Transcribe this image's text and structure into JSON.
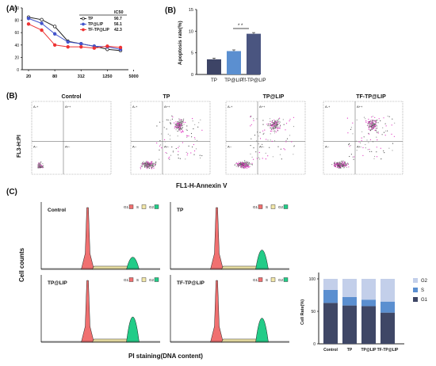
{
  "panels": {
    "a": "(A)",
    "b": "(B)",
    "bb": "(B)",
    "c": "(C)"
  },
  "chart_data": [
    {
      "type": "line",
      "id": "A",
      "x_labels": [
        "20",
        "80",
        "312",
        "1250",
        "5000"
      ],
      "ylim": [
        0,
        100
      ],
      "yticks": [
        "0",
        "20",
        "40",
        "60",
        "80",
        "100"
      ],
      "legend_header": "IC50",
      "series": [
        {
          "name": "TP",
          "ic50": "90.7",
          "color": "#222222",
          "values": [
            85,
            81,
            70,
            46,
            42,
            38,
            33,
            31
          ]
        },
        {
          "name": "TP@LIP",
          "ic50": "56.1",
          "color": "#4455cc",
          "values": [
            83,
            75,
            58,
            45,
            42,
            38,
            37,
            33
          ]
        },
        {
          "name": "TF-TP@LIP",
          "ic50": "42.3",
          "color": "#ee3333",
          "values": [
            74,
            64,
            40,
            37,
            37,
            35,
            38,
            36
          ]
        }
      ]
    },
    {
      "type": "bar",
      "id": "B",
      "categories": [
        "TP",
        "TP@LIP",
        "Tf-TP@LIP"
      ],
      "values": [
        3.5,
        5.4,
        9.4
      ],
      "colors": [
        "#3d4466",
        "#5b8fd0",
        "#4a5580"
      ],
      "ylabel": "Apoptosis rate(%)",
      "ylim": [
        0,
        15
      ],
      "yticks": [
        "0",
        "5",
        "10",
        "15"
      ],
      "significance": "* *"
    },
    {
      "type": "scatter",
      "id": "B-flow",
      "ylabel": "FL3-H:PI",
      "xlabel": "FL1-H-Annexin V",
      "quadrants": [
        "A-+",
        "A++",
        "A--",
        "A+-"
      ],
      "plots": [
        "Control",
        "TP",
        "TP@LIP",
        "TF-TP@LIP"
      ]
    },
    {
      "type": "area",
      "id": "C-hist",
      "ylabel": "Cell counts",
      "xlabel": "PI staining(DNA content)",
      "legend": [
        "G1",
        "S",
        "G2"
      ],
      "plots": [
        "Control",
        "TP",
        "TP@LIP",
        "TF-TP@LIP"
      ]
    },
    {
      "type": "bar",
      "id": "C-stack",
      "categories": [
        "Control",
        "TP",
        "TP@LIP",
        "TF-TP@LIP"
      ],
      "ylabel": "Cell Rate(%)",
      "yticks": [
        "0",
        "50",
        "100"
      ],
      "series": [
        {
          "name": "G1",
          "color": "#3f4766",
          "values": [
            63,
            59,
            58,
            48
          ]
        },
        {
          "name": "S",
          "color": "#5b8fd0",
          "values": [
            20,
            13,
            10,
            17
          ]
        },
        {
          "name": "G2",
          "color": "#c3cfea",
          "values": [
            17,
            28,
            32,
            35
          ]
        }
      ]
    }
  ]
}
